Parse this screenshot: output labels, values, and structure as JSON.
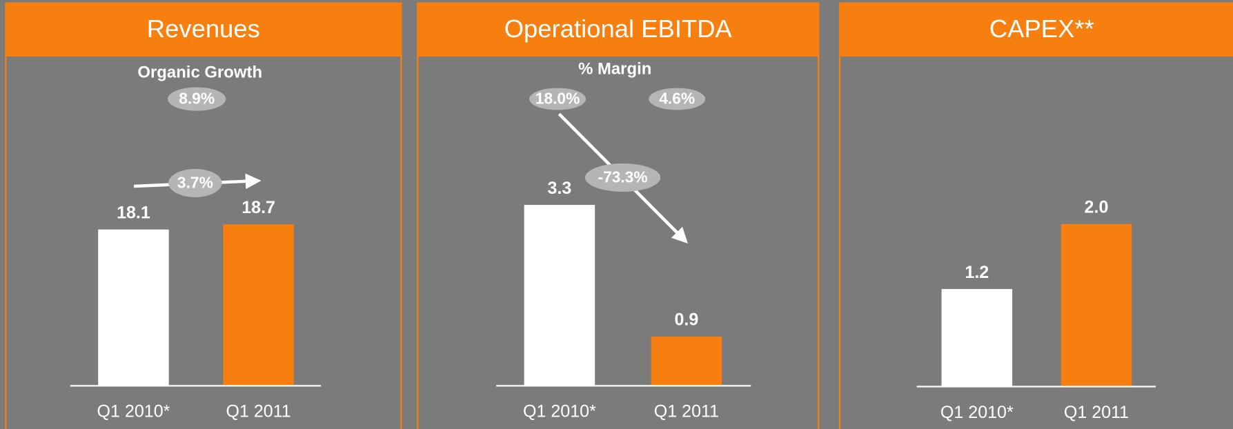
{
  "chart_data": [
    {
      "type": "bar",
      "title": "Revenues",
      "subtitle": "Organic Growth",
      "annotations": [
        "8.9%",
        "3.7%"
      ],
      "categories": [
        "Q1 2010*",
        "Q1 2011"
      ],
      "values": [
        18.1,
        18.7
      ],
      "colors": [
        "#ffffff",
        "#f77f0f"
      ],
      "ylim": [
        0,
        27.3
      ]
    },
    {
      "type": "bar",
      "title": "Operational EBITDA",
      "subtitle": "% Margin",
      "annotations": [
        "18.0%",
        "4.6%",
        "-73.3%"
      ],
      "categories": [
        "Q1 2010*",
        "Q1 2011"
      ],
      "values": [
        3.3,
        0.9
      ],
      "colors": [
        "#ffffff",
        "#f77f0f"
      ],
      "ylim": [
        0,
        4.3
      ]
    },
    {
      "type": "bar",
      "title": "CAPEX**",
      "categories": [
        "Q1 2010*",
        "Q1 2011"
      ],
      "values": [
        1.2,
        2.0
      ],
      "value_labels": [
        "1.2",
        "2.0"
      ],
      "colors": [
        "#ffffff",
        "#f77f0f"
      ],
      "ylim": [
        0,
        2.9
      ]
    }
  ]
}
